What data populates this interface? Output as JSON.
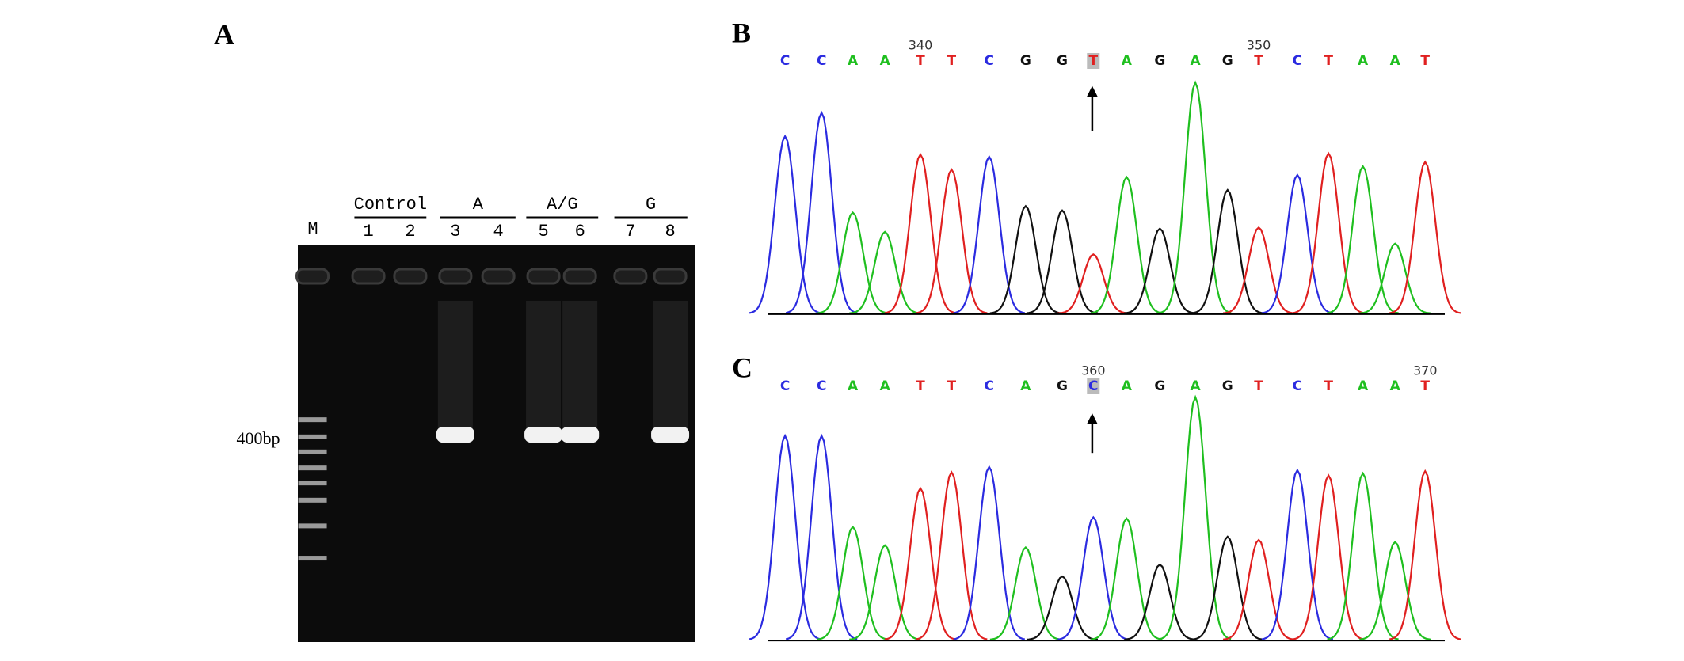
{
  "panels": [
    "A",
    "B",
    "C"
  ],
  "gel": {
    "marker": "M",
    "groups": [
      {
        "label": "Control",
        "lanes": [
          "1",
          "2"
        ]
      },
      {
        "label": "A",
        "lanes": [
          "3",
          "4"
        ]
      },
      {
        "label": "A/G",
        "lanes": [
          "5",
          "6"
        ]
      },
      {
        "label": "G",
        "lanes": [
          "7",
          "8"
        ]
      }
    ],
    "size_label": "400bp"
  },
  "chromatograms": [
    {
      "bases": [
        "C",
        "C",
        "A",
        "A",
        "T",
        "T",
        "C",
        "G",
        "G",
        "T",
        "A",
        "G",
        "A",
        "G",
        "T",
        "C",
        "T",
        "A",
        "A",
        "T"
      ],
      "positions": [
        null,
        null,
        null,
        null,
        340,
        null,
        null,
        null,
        null,
        null,
        null,
        null,
        null,
        null,
        350,
        null,
        null,
        null,
        null,
        null
      ]
    },
    {
      "bases": [
        "C",
        "C",
        "A",
        "A",
        "T",
        "T",
        "C",
        "A",
        "G",
        "C",
        "A",
        "G",
        "A",
        "G",
        "T",
        "C",
        "T",
        "A",
        "A",
        "T"
      ],
      "positions": [
        null,
        null,
        null,
        null,
        null,
        null,
        null,
        null,
        null,
        360,
        null,
        null,
        null,
        null,
        null,
        null,
        null,
        null,
        null,
        370
      ]
    }
  ]
}
